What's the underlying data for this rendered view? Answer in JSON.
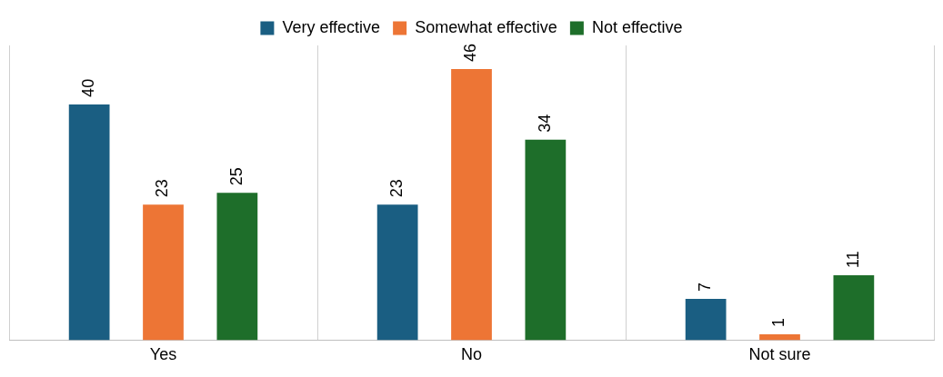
{
  "chart_data": {
    "type": "bar",
    "categories": [
      "Yes",
      "No",
      "Not sure"
    ],
    "series": [
      {
        "name": "Very effective",
        "color": "#1a5e82",
        "values": [
          40,
          23,
          7
        ]
      },
      {
        "name": "Somewhat effective",
        "color": "#ed7535",
        "values": [
          23,
          46,
          1
        ]
      },
      {
        "name": "Not effective",
        "color": "#1e6e2a",
        "values": [
          25,
          34,
          11
        ]
      }
    ],
    "data_labels": true,
    "grid": "x",
    "legend": "top"
  }
}
